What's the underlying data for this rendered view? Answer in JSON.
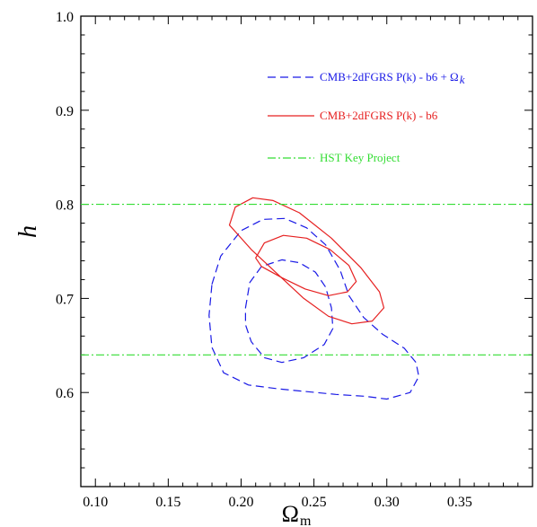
{
  "colors": {
    "blue": "#1a1ae6",
    "red": "#e62020",
    "green": "#33dd33"
  },
  "chart_data": {
    "type": "line",
    "xlabel": "Ω",
    "xlabel_sub": "m",
    "ylabel": "h",
    "xlim": [
      0.09,
      0.4
    ],
    "ylim": [
      0.5,
      1.0
    ],
    "xticks": [
      0.1,
      0.15,
      0.2,
      0.25,
      0.3,
      0.35
    ],
    "xtick_labels": [
      "0.10",
      "0.15",
      "0.20",
      "0.25",
      "0.30",
      "0.35"
    ],
    "yticks": [
      0.6,
      0.7,
      0.8,
      0.9,
      1.0
    ],
    "ytick_labels": [
      "0.6",
      "0.7",
      "0.8",
      "0.9",
      "1.0"
    ],
    "legend": {
      "placement": "top-right",
      "entries": [
        {
          "label": "CMB+2dFGRS P(k) - b6 + Ω",
          "label_sub": "k",
          "color": "blue",
          "style": "dashed"
        },
        {
          "label": "CMB+2dFGRS P(k) - b6",
          "color": "red",
          "style": "solid"
        },
        {
          "label": "HST Key Project",
          "color": "green",
          "style": "dashdot"
        }
      ]
    },
    "series": [
      {
        "style": "dashed",
        "color": "blue",
        "contours": [
          [
            [
              0.18,
              0.715
            ],
            [
              0.186,
              0.745
            ],
            [
              0.2,
              0.772
            ],
            [
              0.215,
              0.784
            ],
            [
              0.23,
              0.785
            ],
            [
              0.245,
              0.775
            ],
            [
              0.258,
              0.757
            ],
            [
              0.268,
              0.73
            ],
            [
              0.274,
              0.703
            ],
            [
              0.284,
              0.68
            ],
            [
              0.297,
              0.662
            ],
            [
              0.312,
              0.647
            ],
            [
              0.32,
              0.632
            ],
            [
              0.322,
              0.617
            ],
            [
              0.316,
              0.6
            ],
            [
              0.3,
              0.593
            ],
            [
              0.285,
              0.596
            ],
            [
              0.265,
              0.598
            ],
            [
              0.245,
              0.601
            ],
            [
              0.225,
              0.604
            ],
            [
              0.205,
              0.608
            ],
            [
              0.188,
              0.621
            ],
            [
              0.18,
              0.648
            ],
            [
              0.178,
              0.682
            ],
            [
              0.18,
              0.715
            ]
          ],
          [
            [
              0.203,
              0.69
            ],
            [
              0.206,
              0.717
            ],
            [
              0.214,
              0.734
            ],
            [
              0.228,
              0.741
            ],
            [
              0.24,
              0.738
            ],
            [
              0.251,
              0.728
            ],
            [
              0.258,
              0.712
            ],
            [
              0.262,
              0.69
            ],
            [
              0.263,
              0.668
            ],
            [
              0.257,
              0.651
            ],
            [
              0.243,
              0.637
            ],
            [
              0.228,
              0.632
            ],
            [
              0.216,
              0.637
            ],
            [
              0.207,
              0.654
            ],
            [
              0.203,
              0.672
            ],
            [
              0.203,
              0.69
            ]
          ]
        ]
      },
      {
        "style": "solid",
        "color": "red",
        "contours": [
          [
            [
              0.192,
              0.778
            ],
            [
              0.196,
              0.797
            ],
            [
              0.208,
              0.807
            ],
            [
              0.222,
              0.804
            ],
            [
              0.24,
              0.791
            ],
            [
              0.262,
              0.764
            ],
            [
              0.282,
              0.733
            ],
            [
              0.295,
              0.707
            ],
            [
              0.298,
              0.69
            ],
            [
              0.29,
              0.676
            ],
            [
              0.276,
              0.673
            ],
            [
              0.26,
              0.681
            ],
            [
              0.243,
              0.7
            ],
            [
              0.225,
              0.726
            ],
            [
              0.207,
              0.752
            ],
            [
              0.192,
              0.778
            ]
          ],
          [
            [
              0.21,
              0.743
            ],
            [
              0.216,
              0.759
            ],
            [
              0.229,
              0.767
            ],
            [
              0.245,
              0.764
            ],
            [
              0.261,
              0.752
            ],
            [
              0.274,
              0.735
            ],
            [
              0.279,
              0.718
            ],
            [
              0.273,
              0.707
            ],
            [
              0.26,
              0.703
            ],
            [
              0.244,
              0.71
            ],
            [
              0.228,
              0.722
            ],
            [
              0.214,
              0.734
            ],
            [
              0.21,
              0.743
            ]
          ]
        ]
      },
      {
        "style": "dashdot",
        "color": "green",
        "hlines": [
          0.8,
          0.64
        ]
      }
    ]
  }
}
